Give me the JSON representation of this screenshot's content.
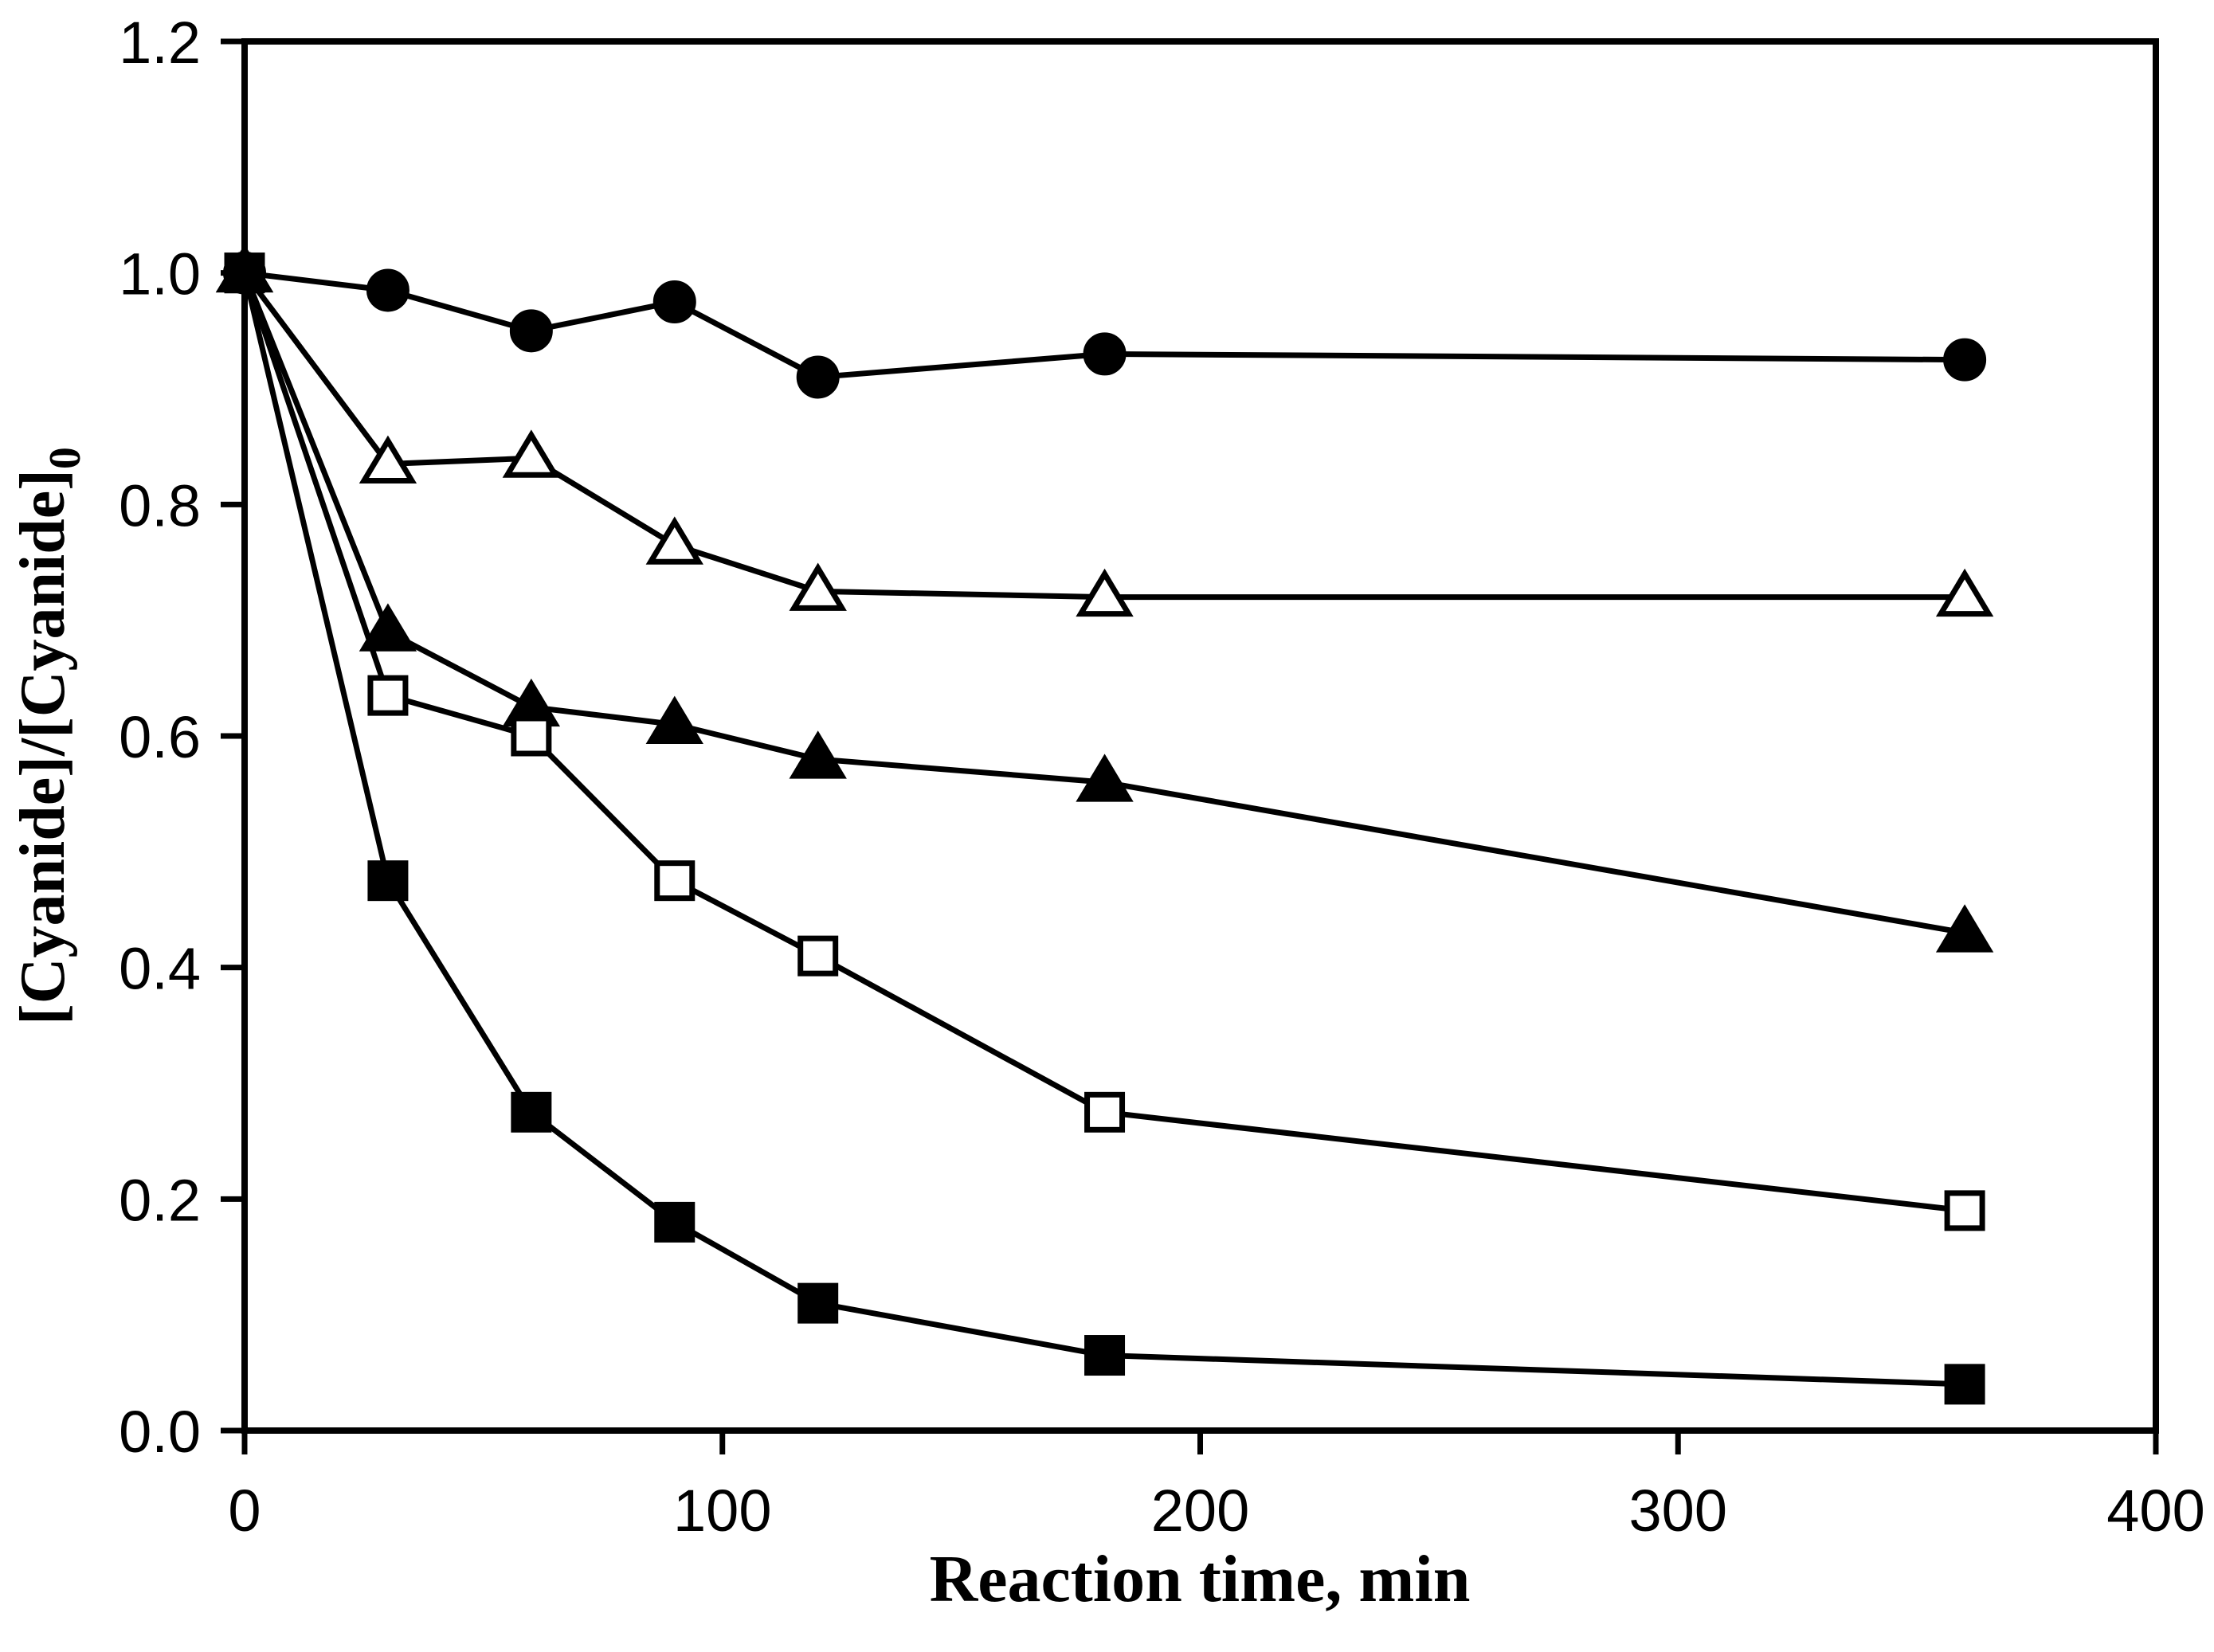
{
  "chart_data": {
    "type": "line",
    "title": "",
    "xlabel": "Reaction time, min",
    "ylabel": "[Cyanide]/[Cyanide]",
    "ylabel_sub": "0",
    "xlim": [
      0,
      400
    ],
    "ylim": [
      0.0,
      1.2
    ],
    "x_ticks": [
      "0",
      "100",
      "200",
      "300",
      "400"
    ],
    "y_ticks": [
      "0.0",
      "0.2",
      "0.4",
      "0.6",
      "0.8",
      "1.0",
      "1.2"
    ],
    "grid": "off",
    "legend": "none",
    "x": [
      0,
      30,
      60,
      90,
      120,
      180,
      360
    ],
    "series": [
      {
        "name": "filled-circle",
        "marker": "circle",
        "fill": "filled",
        "values": [
          1.0,
          0.985,
          0.95,
          0.975,
          0.91,
          0.93,
          0.925
        ]
      },
      {
        "name": "open-triangle",
        "marker": "triangle",
        "fill": "open",
        "values": [
          1.0,
          0.835,
          0.84,
          0.765,
          0.725,
          0.72,
          0.72
        ]
      },
      {
        "name": "filled-triangle",
        "marker": "triangle",
        "fill": "filled",
        "values": [
          1.0,
          0.69,
          0.625,
          0.61,
          0.58,
          0.56,
          0.43
        ]
      },
      {
        "name": "open-square",
        "marker": "square",
        "fill": "open",
        "values": [
          1.0,
          0.635,
          0.6,
          0.475,
          0.41,
          0.275,
          0.19
        ]
      },
      {
        "name": "filled-square",
        "marker": "square",
        "fill": "filled",
        "values": [
          1.0,
          0.475,
          0.275,
          0.18,
          0.11,
          0.065,
          0.04
        ]
      }
    ],
    "colors": {
      "ink": "#000000",
      "background": "#ffffff"
    }
  }
}
